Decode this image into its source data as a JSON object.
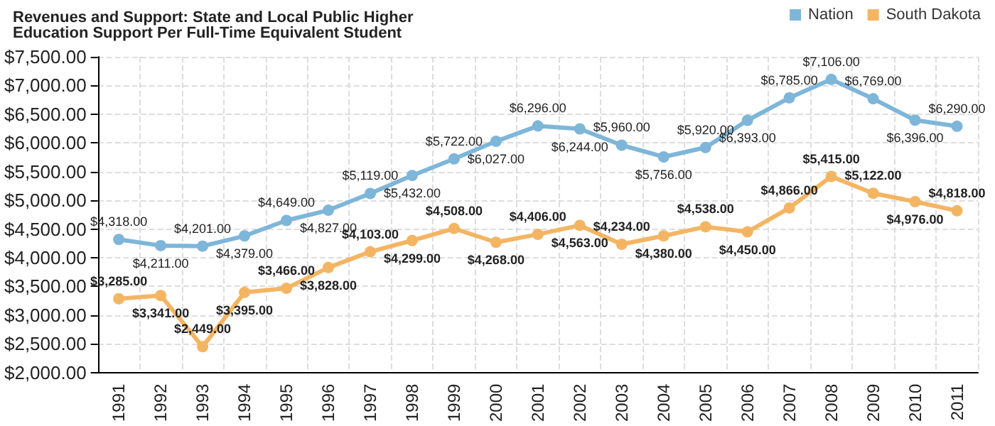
{
  "chart_data": {
    "type": "line",
    "title": "Revenues and Support: State and Local Public Higher Education Support Per Full-Time Equivalent Student",
    "categories": [
      "1991",
      "1992",
      "1993",
      "1994",
      "1995",
      "1996",
      "1997",
      "1998",
      "1999",
      "2000",
      "2001",
      "2002",
      "2003",
      "2004",
      "2005",
      "2006",
      "2007",
      "2008",
      "2009",
      "2010",
      "2011"
    ],
    "series": [
      {
        "name": "Nation",
        "color": "#7eb6d9",
        "values": [
          4318,
          4211,
          4201,
          4379,
          4649,
          4827,
          5119,
          5432,
          5722,
          6027,
          6296,
          6244,
          5960,
          5756,
          5920,
          6393,
          6785,
          7106,
          6769,
          6396,
          6290
        ],
        "value_labels": [
          "$4,318.00",
          "$4,211.00",
          "$4,201.00",
          "$4,379.00",
          "$4,649.00",
          "$4,827.00",
          "$5,119.00",
          "$5,432.00",
          "$5,722.00",
          "$6,027.00",
          "$6,296.00",
          "$6,244.00",
          "$5,960.00",
          "$5,756.00",
          "$5,920.00",
          "$6,393.00",
          "$6,785.00",
          "$7,106.00",
          "$6,769.00",
          "$6,396.00",
          "$6,290.00"
        ]
      },
      {
        "name": "South Dakota",
        "color": "#f4b563",
        "values": [
          3285,
          3341,
          2449,
          3395,
          3466,
          3828,
          4103,
          4299,
          4508,
          4268,
          4406,
          4563,
          4234,
          4380,
          4538,
          4450,
          4866,
          5415,
          5122,
          4976,
          4818
        ],
        "value_labels": [
          "$3,285.00",
          "$3,341.00",
          "$2,449.00",
          "$3,395.00",
          "$3,466.00",
          "$3,828.00",
          "$4,103.00",
          "$4,299.00",
          "$4,508.00",
          "$4,268.00",
          "$4,406.00",
          "$4,563.00",
          "$4,234.00",
          "$4,380.00",
          "$4,538.00",
          "$4,450.00",
          "$4,866.00",
          "$5,415.00",
          "$5,122.00",
          "$4,976.00",
          "$4,818.00"
        ]
      }
    ],
    "ylim": [
      2000,
      7500
    ],
    "yticks": [
      {
        "value": 2000,
        "label": "$2,000.00"
      },
      {
        "value": 2500,
        "label": "$2,500.00"
      },
      {
        "value": 3000,
        "label": "$3,000.00"
      },
      {
        "value": 3500,
        "label": "$3,500.00"
      },
      {
        "value": 4000,
        "label": "$4,000.00"
      },
      {
        "value": 4500,
        "label": "$4,500.00"
      },
      {
        "value": 5000,
        "label": "$5,000.00"
      },
      {
        "value": 5500,
        "label": "$5,500.00"
      },
      {
        "value": 6000,
        "label": "$6,000.00"
      },
      {
        "value": 6500,
        "label": "$6,500.00"
      },
      {
        "value": 7000,
        "label": "$7,000.00"
      },
      {
        "value": 7500,
        "label": "$7,500.00"
      }
    ],
    "grid": true,
    "legend": "top right",
    "marker": "circle",
    "line_style": "solid"
  }
}
